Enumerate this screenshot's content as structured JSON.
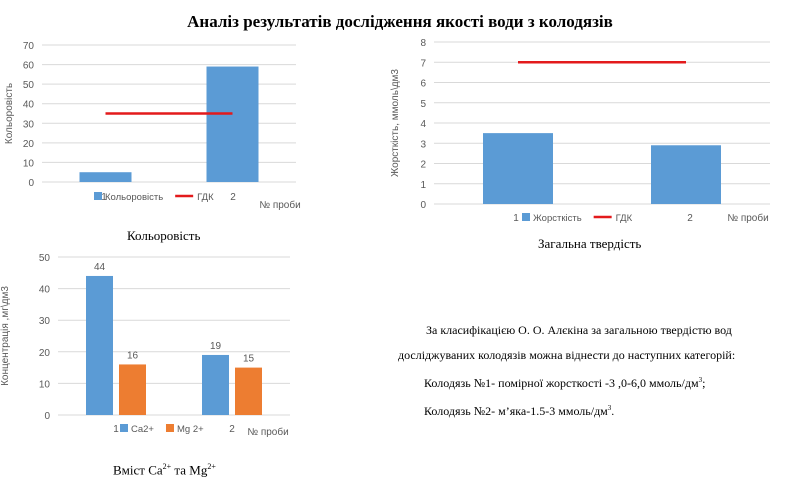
{
  "title": "Аналіз результатів дослідження якості води з колодязів",
  "colors": {
    "blue": "#5b9bd5",
    "orange": "#ed7d31",
    "red": "#e31a1c",
    "grid": "#d9d9d9"
  },
  "captions": {
    "chart1": "Кольоровість",
    "chart2": "Загальна твердість",
    "chart3_pre": "Вміст Ca",
    "chart3_sup1": "2+",
    "chart3_mid": " та Mg",
    "chart3_sup2": "2+"
  },
  "text": {
    "p1": "За класифікацією О. О. Алєкіна за загальною твердістю вод",
    "p2": "досліджуваних колодязів можна віднести до наступних категорій:",
    "p3": "Колодязь №1- помірної жорсткості -3 ,0-6,0 ммоль/дм",
    "p3_sup": "3",
    "p3_end": ";",
    "p4": "Колодязь №2- м’яка-1.5-3 ммоль/дм",
    "p4_sup": "3",
    "p4_end": "."
  },
  "chart_data": [
    {
      "type": "bar",
      "categories": [
        "1",
        "2"
      ],
      "series": [
        {
          "name": "Кольоровість",
          "values": [
            5,
            59
          ],
          "color": "#5b9bd5"
        },
        {
          "name": "ГДК",
          "type": "line",
          "values": [
            35,
            35
          ],
          "color": "#e31a1c"
        }
      ],
      "xlabel": "№ проби",
      "ylabel": "Кольоровість",
      "ylim": [
        0,
        70
      ],
      "yticks": [
        0,
        10,
        20,
        30,
        40,
        50,
        60,
        70
      ],
      "grid": true,
      "legend": "bottom"
    },
    {
      "type": "bar",
      "categories": [
        "1",
        "2"
      ],
      "series": [
        {
          "name": "Жорсткість",
          "values": [
            3.5,
            2.9
          ],
          "color": "#5b9bd5"
        },
        {
          "name": "ГДК",
          "type": "line",
          "values": [
            7,
            7
          ],
          "color": "#e31a1c"
        }
      ],
      "xlabel": "№ проби",
      "ylabel": "Жорсткість, ммоль\\дм3",
      "ylim": [
        0,
        8
      ],
      "yticks": [
        0,
        1,
        2,
        3,
        4,
        5,
        6,
        7,
        8
      ],
      "grid": true,
      "legend": "bottom"
    },
    {
      "type": "bar",
      "categories": [
        "1",
        "2"
      ],
      "series": [
        {
          "name": "Ca2+",
          "values": [
            44,
            19
          ],
          "color": "#5b9bd5"
        },
        {
          "name": "Mg 2+",
          "values": [
            16,
            15
          ],
          "color": "#ed7d31"
        }
      ],
      "data_labels": true,
      "xlabel": "№ проби",
      "ylabel": "Концентрація ,мг\\дм3",
      "ylim": [
        0,
        50
      ],
      "yticks": [
        0,
        10,
        20,
        30,
        40,
        50
      ],
      "grid": true,
      "legend": "bottom"
    }
  ]
}
